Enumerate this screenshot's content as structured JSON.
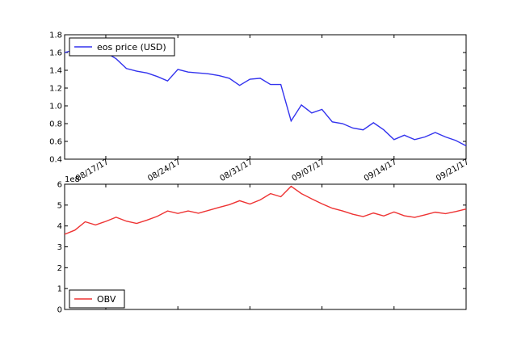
{
  "chart_data": [
    {
      "type": "line",
      "x": [
        "2017-08-13",
        "2017-08-14",
        "2017-08-15",
        "2017-08-16",
        "2017-08-17",
        "2017-08-18",
        "2017-08-19",
        "2017-08-20",
        "2017-08-21",
        "2017-08-22",
        "2017-08-23",
        "2017-08-24",
        "2017-08-25",
        "2017-08-26",
        "2017-08-27",
        "2017-08-28",
        "2017-08-29",
        "2017-08-30",
        "2017-08-31",
        "2017-09-01",
        "2017-09-02",
        "2017-09-03",
        "2017-09-04",
        "2017-09-05",
        "2017-09-06",
        "2017-09-07",
        "2017-09-08",
        "2017-09-09",
        "2017-09-10",
        "2017-09-11",
        "2017-09-12",
        "2017-09-13",
        "2017-09-14",
        "2017-09-15",
        "2017-09-16",
        "2017-09-17",
        "2017-09-18",
        "2017-09-19",
        "2017-09-20",
        "2017-09-21"
      ],
      "series": [
        {
          "name": "eos price (USD)",
          "color": "#3333ee",
          "values": [
            1.6,
            1.63,
            1.6,
            1.58,
            1.6,
            1.53,
            1.42,
            1.39,
            1.37,
            1.33,
            1.28,
            1.41,
            1.38,
            1.37,
            1.36,
            1.34,
            1.31,
            1.23,
            1.3,
            1.31,
            1.24,
            1.24,
            0.83,
            1.01,
            0.92,
            0.96,
            0.82,
            0.8,
            0.75,
            0.73,
            0.81,
            0.73,
            0.62,
            0.67,
            0.62,
            0.65,
            0.7,
            0.65,
            0.61,
            0.55
          ]
        }
      ],
      "ylim": [
        0.4,
        1.8
      ],
      "yticks": [
        "0.4",
        "0.6",
        "0.8",
        "1.0",
        "1.2",
        "1.4",
        "1.6",
        "1.8"
      ],
      "xticks": [
        {
          "date": "2017-08-17",
          "label": "08/17/17"
        },
        {
          "date": "2017-08-24",
          "label": "08/24/17"
        },
        {
          "date": "2017-08-31",
          "label": "08/31/17"
        },
        {
          "date": "2017-09-07",
          "label": "09/07/17"
        },
        {
          "date": "2017-09-14",
          "label": "09/14/17"
        },
        {
          "date": "2017-09-21",
          "label": "09/21/17"
        }
      ],
      "legend": "top-left",
      "grid": false
    },
    {
      "type": "line",
      "x": [
        "2017-08-13",
        "2017-08-14",
        "2017-08-15",
        "2017-08-16",
        "2017-08-17",
        "2017-08-18",
        "2017-08-19",
        "2017-08-20",
        "2017-08-21",
        "2017-08-22",
        "2017-08-23",
        "2017-08-24",
        "2017-08-25",
        "2017-08-26",
        "2017-08-27",
        "2017-08-28",
        "2017-08-29",
        "2017-08-30",
        "2017-08-31",
        "2017-09-01",
        "2017-09-02",
        "2017-09-03",
        "2017-09-04",
        "2017-09-05",
        "2017-09-06",
        "2017-09-07",
        "2017-09-08",
        "2017-09-09",
        "2017-09-10",
        "2017-09-11",
        "2017-09-12",
        "2017-09-13",
        "2017-09-14",
        "2017-09-15",
        "2017-09-16",
        "2017-09-17",
        "2017-09-18",
        "2017-09-19",
        "2017-09-20",
        "2017-09-21"
      ],
      "series": [
        {
          "name": "OBV",
          "color": "#ee3333",
          "values": [
            360000000,
            380000000,
            420000000,
            405000000,
            422000000,
            442000000,
            423000000,
            412000000,
            428000000,
            446000000,
            472000000,
            460000000,
            472000000,
            461000000,
            475000000,
            489000000,
            502000000,
            521000000,
            505000000,
            525000000,
            555000000,
            540000000,
            590000000,
            555000000,
            530000000,
            506000000,
            485000000,
            472000000,
            456000000,
            445000000,
            462000000,
            448000000,
            467000000,
            449000000,
            441000000,
            453000000,
            466000000,
            459000000,
            469000000,
            481000000
          ]
        }
      ],
      "ylim": [
        0,
        600000000
      ],
      "yticks": [
        "0",
        "1",
        "2",
        "3",
        "4",
        "5",
        "6"
      ],
      "offset_label": "1e8",
      "legend": "bottom-left",
      "grid": false
    }
  ]
}
